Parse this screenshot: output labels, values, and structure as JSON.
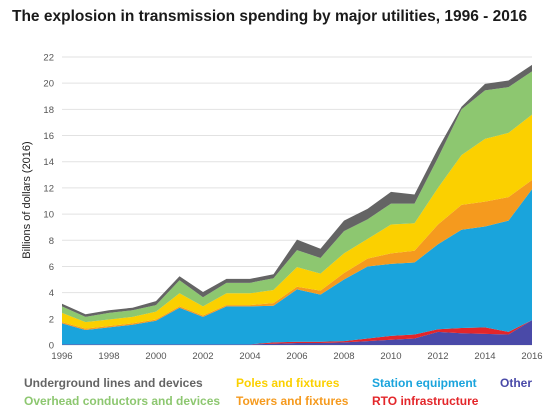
{
  "chart_data": {
    "type": "area",
    "title": "The explosion in transmission spending by major utilities, 1996 - 2016",
    "xlabel": "",
    "ylabel": "Billions of dollars (2016)",
    "ylim": [
      0,
      22
    ],
    "yticks": [
      0,
      2,
      4,
      6,
      8,
      10,
      12,
      14,
      16,
      18,
      20,
      22
    ],
    "x": [
      1996,
      1997,
      1998,
      1999,
      2000,
      2001,
      2002,
      2003,
      2004,
      2005,
      2006,
      2007,
      2008,
      2009,
      2010,
      2011,
      2012,
      2013,
      2014,
      2015,
      2016
    ],
    "xticks": [
      1996,
      1998,
      2000,
      2002,
      2004,
      2006,
      2008,
      2010,
      2012,
      2014,
      2016
    ],
    "grid": true,
    "stacked": true,
    "legend_position": "bottom",
    "series": [
      {
        "name": "Other",
        "color": "#4a4aa8",
        "values": [
          0.05,
          0.05,
          0.05,
          0.05,
          0.05,
          0.05,
          0.05,
          0.05,
          0.05,
          0.1,
          0.15,
          0.15,
          0.2,
          0.3,
          0.4,
          0.5,
          1.0,
          0.9,
          0.85,
          0.8,
          1.9
        ]
      },
      {
        "name": "RTO infrastructure",
        "color": "#e3262a",
        "values": [
          0.0,
          0.0,
          0.0,
          0.0,
          0.0,
          0.0,
          0.0,
          0.0,
          0.0,
          0.1,
          0.1,
          0.1,
          0.1,
          0.2,
          0.3,
          0.3,
          0.2,
          0.4,
          0.5,
          0.2,
          0.0
        ]
      },
      {
        "name": "Station equipment",
        "color": "#1aa4dc",
        "values": [
          1.6,
          1.1,
          1.3,
          1.5,
          1.8,
          2.8,
          2.1,
          2.9,
          2.9,
          2.8,
          4.0,
          3.6,
          4.7,
          5.5,
          5.5,
          5.5,
          6.5,
          7.5,
          7.7,
          8.5,
          10.0
        ]
      },
      {
        "name": "Towers and fixtures",
        "color": "#f59a1e",
        "values": [
          0.1,
          0.1,
          0.1,
          0.1,
          0.1,
          0.1,
          0.1,
          0.1,
          0.1,
          0.2,
          0.2,
          0.3,
          0.5,
          0.6,
          0.8,
          0.9,
          1.5,
          1.9,
          1.9,
          1.8,
          0.7
        ]
      },
      {
        "name": "Poles and fixtures",
        "color": "#fbd000",
        "values": [
          0.7,
          0.5,
          0.5,
          0.5,
          0.6,
          1.0,
          0.7,
          0.9,
          0.9,
          1.0,
          1.5,
          1.3,
          1.5,
          1.5,
          2.2,
          2.1,
          2.8,
          3.8,
          4.8,
          4.9,
          5.0
        ]
      },
      {
        "name": "Overhead conductors and devices",
        "color": "#8dc770",
        "values": [
          0.5,
          0.4,
          0.5,
          0.5,
          0.5,
          1.0,
          0.7,
          0.8,
          0.8,
          0.9,
          1.3,
          1.2,
          1.7,
          1.5,
          1.6,
          1.5,
          2.3,
          3.5,
          3.7,
          3.5,
          3.3
        ]
      },
      {
        "name": "Underground lines and devices",
        "color": "#646464",
        "values": [
          0.2,
          0.2,
          0.2,
          0.2,
          0.3,
          0.3,
          0.4,
          0.3,
          0.3,
          0.3,
          0.8,
          0.7,
          0.8,
          0.8,
          0.9,
          0.7,
          0.7,
          0.2,
          0.5,
          0.5,
          0.5
        ]
      }
    ]
  },
  "legend": {
    "underground": {
      "label": "Underground lines and devices",
      "color": "#646464"
    },
    "overhead": {
      "label": "Overhead conductors and devices",
      "color": "#8dc770"
    },
    "poles": {
      "label": "Poles and fixtures",
      "color": "#fbd000"
    },
    "towers": {
      "label": "Towers and fixtures",
      "color": "#f59a1e"
    },
    "station": {
      "label": "Station equipment",
      "color": "#1aa4dc"
    },
    "rto": {
      "label": "RTO infrastructure",
      "color": "#e3262a"
    },
    "other": {
      "label": "Other",
      "color": "#4a4aa8"
    }
  }
}
